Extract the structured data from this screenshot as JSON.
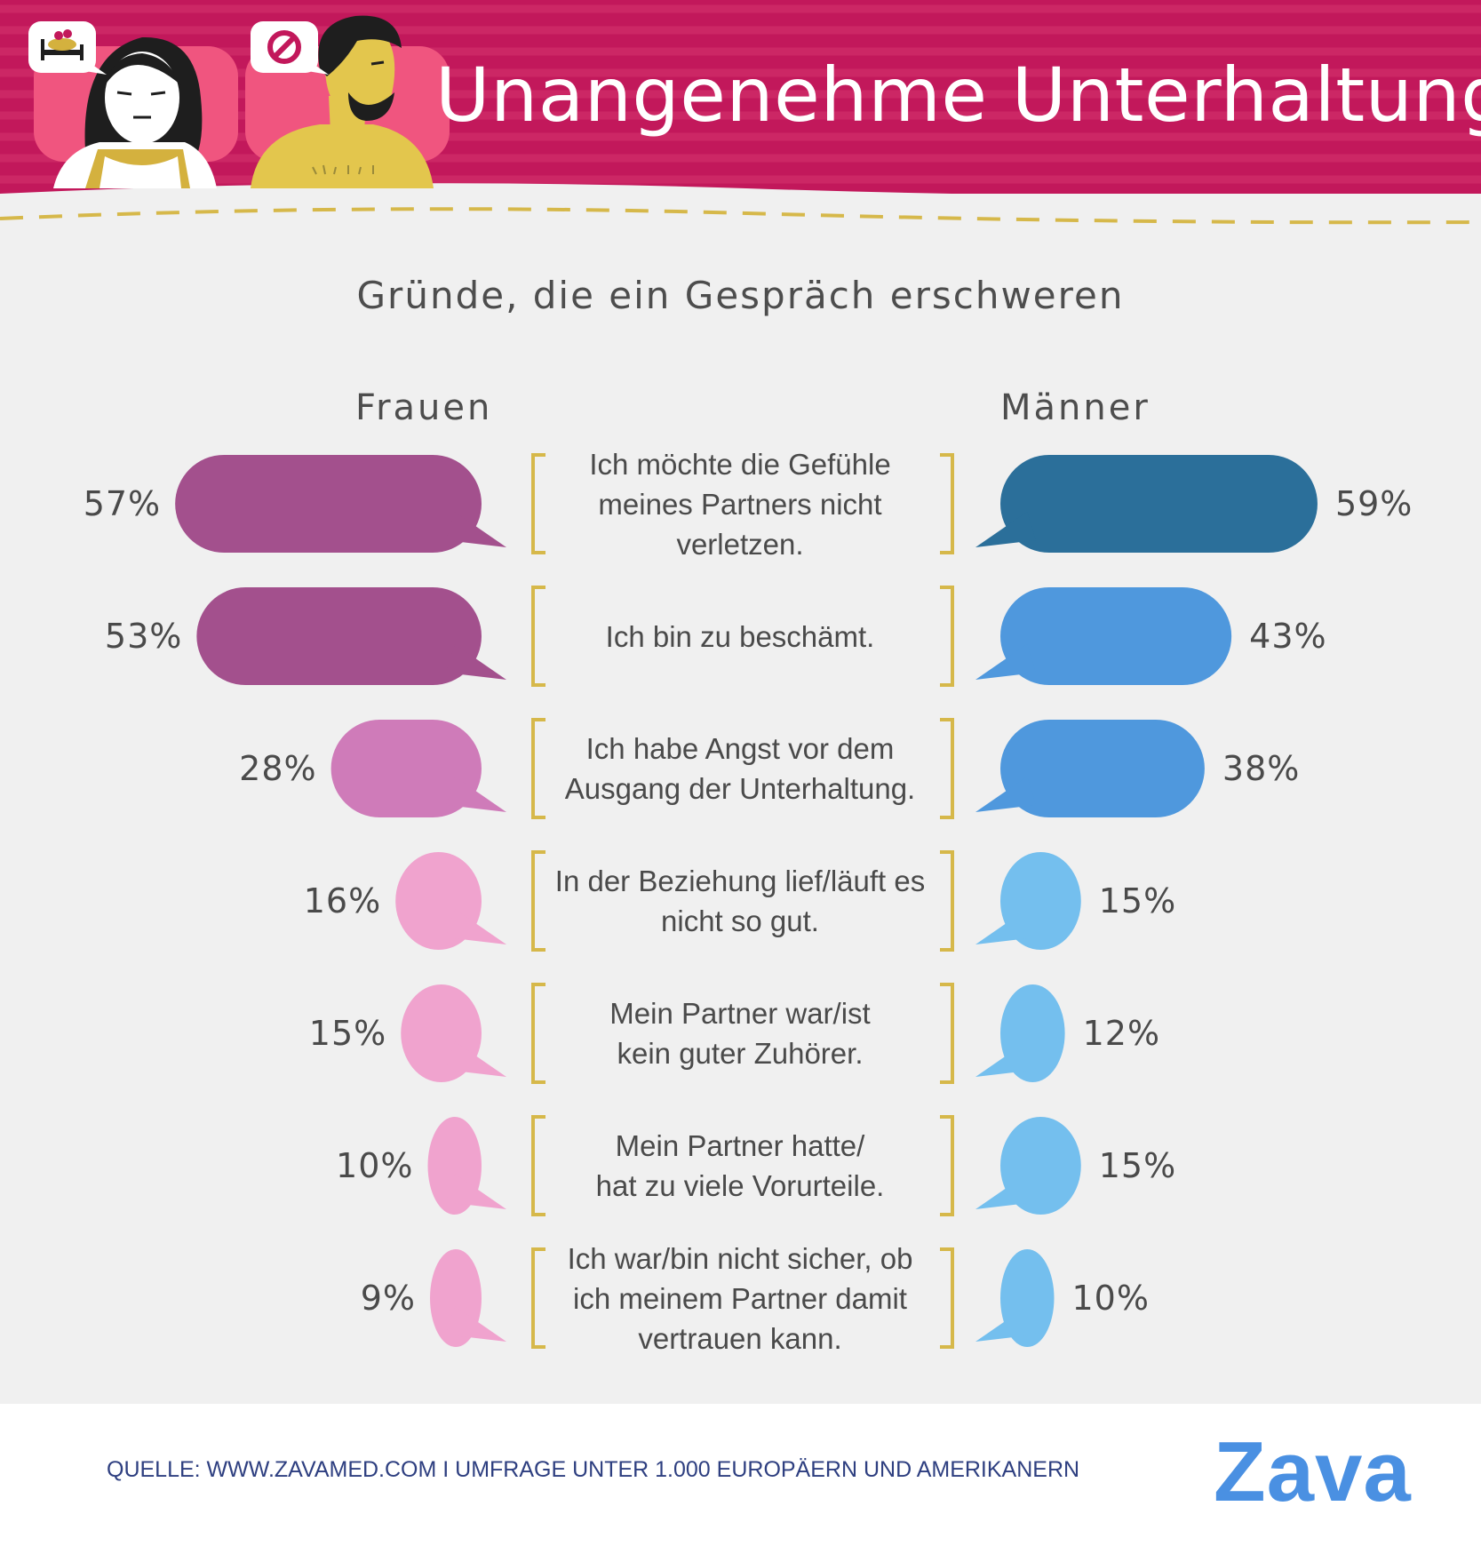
{
  "header": {
    "title": "Unangenehme Unterhaltung",
    "bg_color": "#c2185b",
    "accent_pink": "#f0557f",
    "gold": "#d6b84a",
    "woman_bubble_icon": "bed-couple-icon",
    "man_bubble_icon": "prohibited-icon"
  },
  "footer": {
    "source": "QUELLE: WWW.ZAVAMED.COM I UMFRAGE UNTER 1.000 EUROPÄERN UND AMERIKANERN",
    "logo": "Zava"
  },
  "chart_data": {
    "type": "bar",
    "title": "Gründe, die ein Gespräch erschweren",
    "orientation": "horizontal-diverging",
    "categories": [
      "Ich möchte die Gefühle\nmeines Partners nicht\nverletzen.",
      "Ich bin zu beschämt.",
      "Ich habe Angst vor dem\nAusgang der Unterhaltung.",
      "In der Beziehung lief/läuft es\nnicht so gut.",
      "Mein Partner war/ist\nkein guter Zuhörer.",
      "Mein Partner hatte/\nhat zu viele Vorurteile.",
      "Ich war/bin nicht sicher, ob\nich meinem Partner damit\nvertrauen kann."
    ],
    "series": [
      {
        "name": "Frauen",
        "values": [
          57,
          53,
          28,
          16,
          15,
          10,
          9
        ],
        "labels": [
          "57%",
          "53%",
          "28%",
          "16%",
          "15%",
          "10%",
          "9%"
        ],
        "colors": [
          "#a3508d",
          "#a3508d",
          "#cf7bb9",
          "#f0a3ce",
          "#f0a3ce",
          "#f0a3ce",
          "#f0a3ce"
        ]
      },
      {
        "name": "Männer",
        "values": [
          59,
          43,
          38,
          15,
          12,
          15,
          10
        ],
        "labels": [
          "59%",
          "43%",
          "38%",
          "15%",
          "12%",
          "15%",
          "10%"
        ],
        "colors": [
          "#2b6f9a",
          "#4f98dd",
          "#4f98dd",
          "#74bfee",
          "#74bfee",
          "#74bfee",
          "#74bfee"
        ]
      }
    ],
    "unit": "%",
    "bracket_color": "#d6b84a"
  }
}
